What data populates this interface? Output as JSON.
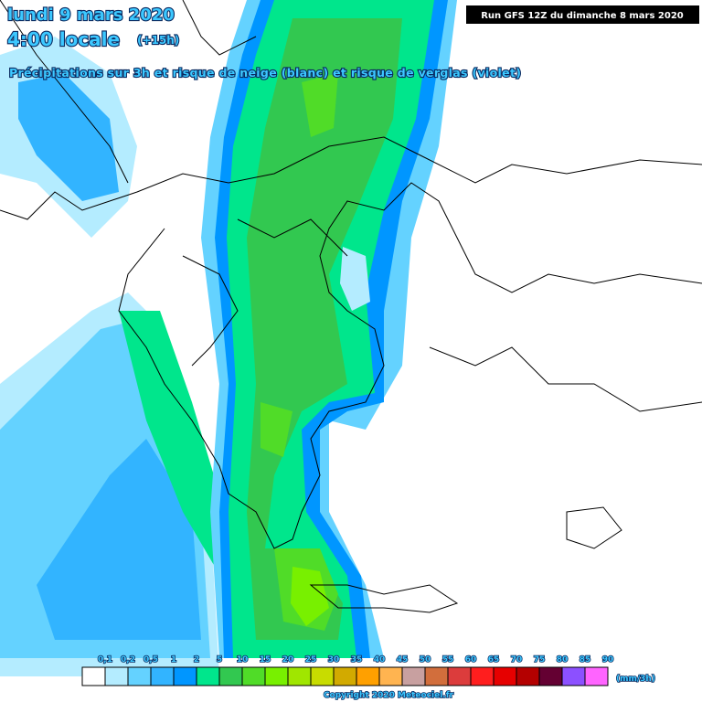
{
  "header": {
    "date": "lundi 9 mars 2020",
    "time": "4:00 locale",
    "offset": "(+15h)",
    "subtitle": "Précipitations sur 3h et risque de neige (blanc) et risque de verglas (violet)",
    "run": "Run GFS 12Z du dimanche 8 mars 2020"
  },
  "legend": {
    "items": [
      {
        "label": "0,1",
        "color": "#ffffff"
      },
      {
        "label": "0,2",
        "color": "#b4ecff"
      },
      {
        "label": "0,5",
        "color": "#64d2ff"
      },
      {
        "label": "1",
        "color": "#32b4ff"
      },
      {
        "label": "2",
        "color": "#0096ff"
      },
      {
        "label": "5",
        "color": "#00e68c"
      },
      {
        "label": "10",
        "color": "#32c850"
      },
      {
        "label": "15",
        "color": "#50dc28"
      },
      {
        "label": "20",
        "color": "#78f000"
      },
      {
        "label": "25",
        "color": "#a0e600"
      },
      {
        "label": "30",
        "color": "#c8dc00"
      },
      {
        "label": "35",
        "color": "#d2aa00"
      },
      {
        "label": "40",
        "color": "#ffa000"
      },
      {
        "label": "45",
        "color": "#ffb450"
      },
      {
        "label": "50",
        "color": "#c8a0a0"
      },
      {
        "label": "55",
        "color": "#d26e3c"
      },
      {
        "label": "60",
        "color": "#dc3c3c"
      },
      {
        "label": "65",
        "color": "#ff1e1e"
      },
      {
        "label": "70",
        "color": "#e60000"
      },
      {
        "label": "75",
        "color": "#b40000"
      },
      {
        "label": "80",
        "color": "#640032"
      },
      {
        "label": "85",
        "color": "#8c50ff"
      },
      {
        "label": "90",
        "color": "#ff64ff"
      }
    ],
    "unit": "(mm/3h)"
  },
  "footer": {
    "copyright": "Copyright 2020 Meteociel.fr"
  }
}
